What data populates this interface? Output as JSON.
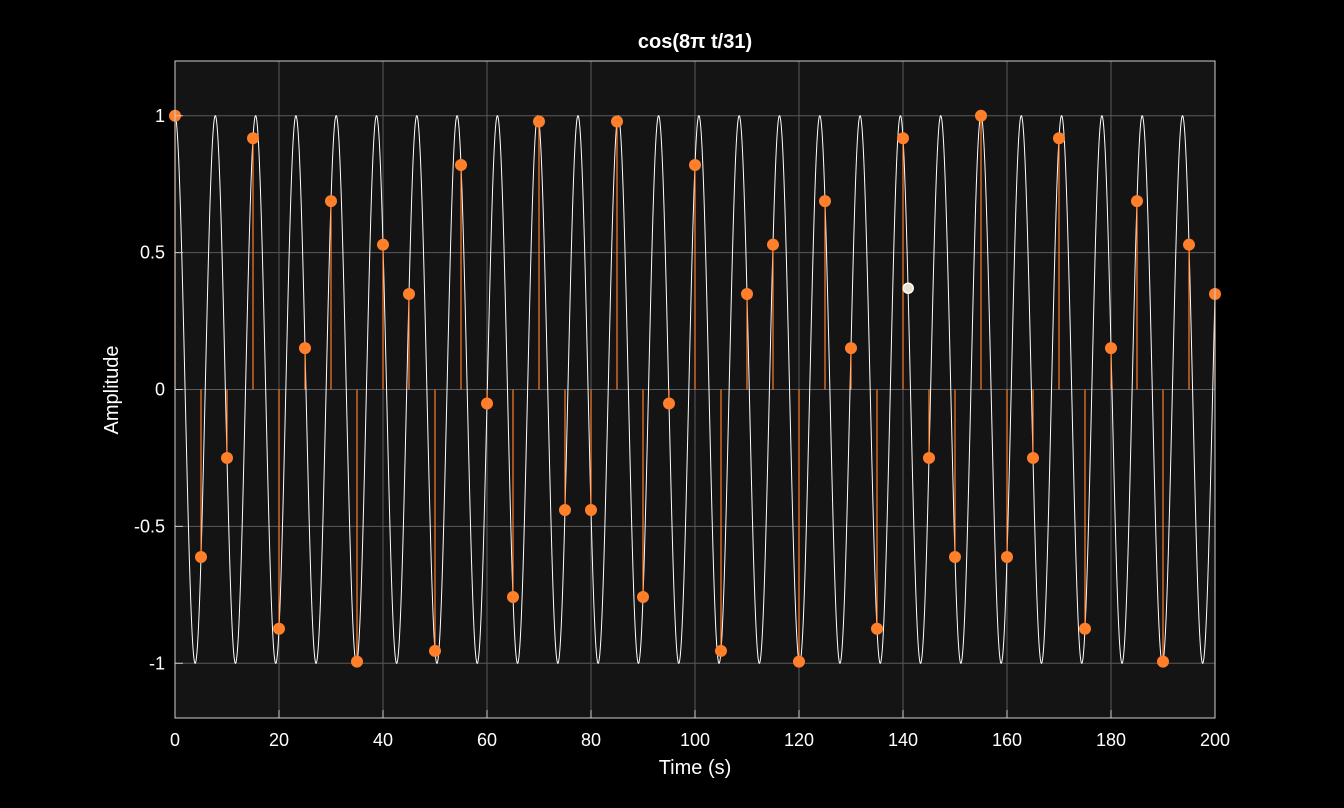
{
  "colors": {
    "figure_background": "#000000",
    "axes_background": "#141414",
    "grid": "#5a5a5a",
    "axes_edge": "#cfcfcf",
    "continuous_line": "#ffffff",
    "sample_stem": "#ff7f2a",
    "highlight_marker_edge": "#ffffff",
    "highlight_marker_fill": "#e8e2cf"
  },
  "chart_data": {
    "type": "line",
    "title": "cos(8π  t/31)",
    "xlabel": "Time (s)",
    "ylabel": "Amplitude",
    "xlim": [
      0,
      200
    ],
    "ylim": [
      -1.2,
      1.2
    ],
    "xticks": [
      0,
      20,
      40,
      60,
      80,
      100,
      120,
      140,
      160,
      180,
      200
    ],
    "xtick_labels": [
      "0",
      "20",
      "40",
      "60",
      "80",
      "100",
      "120",
      "140",
      "160",
      "180",
      "200"
    ],
    "yticks": [
      -1,
      -0.5,
      0,
      0.5,
      1
    ],
    "ytick_labels": [
      "-1",
      "-0.5",
      "0",
      "0.5",
      "1"
    ],
    "grid": true,
    "series": [
      {
        "kind": "continuous",
        "function": "cos(8*pi*t/31)",
        "t_range": [
          0,
          200
        ]
      },
      {
        "kind": "stem",
        "x": [
          0,
          5,
          10,
          15,
          20,
          25,
          30,
          35,
          40,
          45,
          50,
          55,
          60,
          65,
          70,
          75,
          80,
          85,
          90,
          95,
          100,
          105,
          110,
          115,
          120,
          125,
          130,
          135,
          140,
          145,
          150,
          155,
          160,
          165,
          170,
          175,
          180,
          185,
          190,
          195,
          200
        ],
        "y": [
          1.0,
          -0.612,
          -0.25,
          0.918,
          -0.874,
          0.151,
          0.688,
          -0.994,
          0.529,
          0.349,
          -0.955,
          0.82,
          -0.051,
          -0.758,
          0.979,
          -0.44,
          -0.44,
          0.979,
          -0.758,
          -0.051,
          0.82,
          -0.955,
          0.349,
          0.529,
          -0.994,
          0.688,
          0.151,
          -0.874,
          0.918,
          -0.25,
          -0.612,
          1.0,
          -0.612,
          -0.25,
          0.918,
          -0.874,
          0.151,
          0.688,
          -0.994,
          0.529,
          0.349
        ]
      }
    ],
    "highlight_point": {
      "x": 141,
      "y": 0.37
    }
  }
}
